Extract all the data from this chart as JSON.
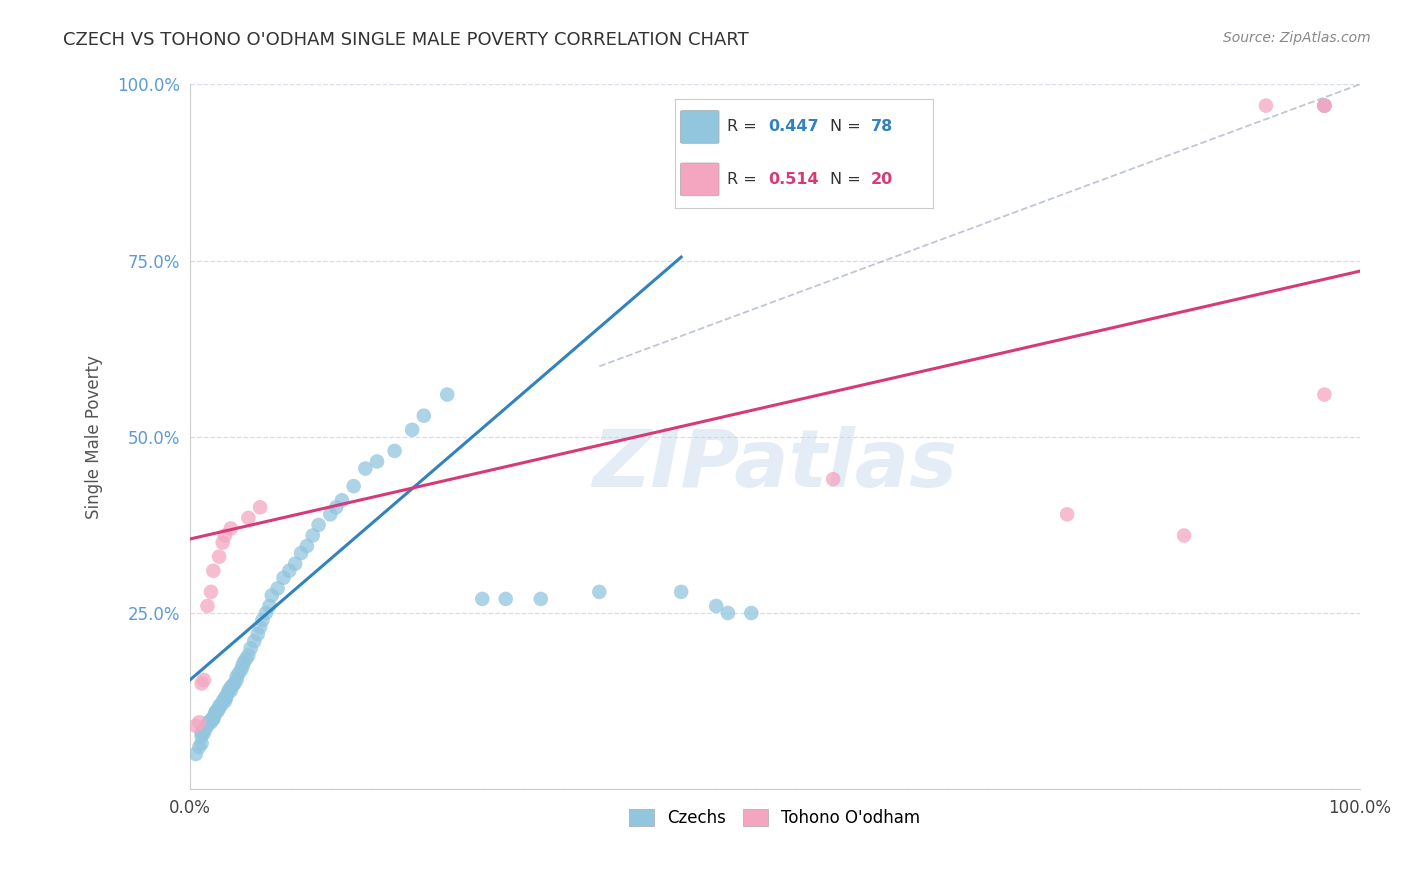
{
  "title": "CZECH VS TOHONO O'ODHAM SINGLE MALE POVERTY CORRELATION CHART",
  "source": "Source: ZipAtlas.com",
  "ylabel": "Single Male Poverty",
  "watermark": "ZIPatlas",
  "legend_label1": "Czechs",
  "legend_label2": "Tohono O'odham",
  "R_czech": 0.447,
  "N_czech": 78,
  "R_tohono": 0.514,
  "N_tohono": 20,
  "blue_color": "#92c5de",
  "blue_line_color": "#3182bd",
  "pink_color": "#f4a6c0",
  "pink_line_color": "#d63a78",
  "dashed_line_color": "#b0b8cc",
  "background_color": "#ffffff",
  "grid_color": "#d8dde8",
  "axis_label_color": "#5b9bd5",
  "xlim": [
    0,
    1
  ],
  "ylim": [
    0,
    1
  ],
  "blue_line_x": [
    0.0,
    0.42
  ],
  "blue_line_y": [
    0.155,
    0.755
  ],
  "pink_line_x": [
    0.0,
    1.0
  ],
  "pink_line_y": [
    0.355,
    0.735
  ],
  "dashed_line_x": [
    0.35,
    1.0
  ],
  "dashed_line_y": [
    0.6,
    1.0
  ],
  "czech_x": [
    0.005,
    0.008,
    0.01,
    0.01,
    0.01,
    0.012,
    0.012,
    0.013,
    0.014,
    0.015,
    0.016,
    0.016,
    0.018,
    0.019,
    0.02,
    0.02,
    0.021,
    0.022,
    0.022,
    0.023,
    0.024,
    0.025,
    0.025,
    0.027,
    0.028,
    0.03,
    0.03,
    0.031,
    0.032,
    0.033,
    0.035,
    0.035,
    0.037,
    0.038,
    0.04,
    0.04,
    0.042,
    0.044,
    0.045,
    0.046,
    0.048,
    0.05,
    0.052,
    0.055,
    0.058,
    0.06,
    0.062,
    0.065,
    0.068,
    0.07,
    0.075,
    0.08,
    0.085,
    0.09,
    0.095,
    0.1,
    0.105,
    0.11,
    0.12,
    0.125,
    0.13,
    0.14,
    0.15,
    0.16,
    0.175,
    0.19,
    0.2,
    0.22,
    0.25,
    0.27,
    0.3,
    0.35,
    0.42,
    0.45,
    0.46,
    0.48,
    0.97,
    0.97
  ],
  "czech_y": [
    0.05,
    0.06,
    0.065,
    0.075,
    0.08,
    0.08,
    0.085,
    0.085,
    0.09,
    0.09,
    0.095,
    0.095,
    0.095,
    0.1,
    0.1,
    0.1,
    0.105,
    0.108,
    0.11,
    0.11,
    0.112,
    0.115,
    0.118,
    0.12,
    0.125,
    0.125,
    0.13,
    0.13,
    0.135,
    0.14,
    0.14,
    0.145,
    0.148,
    0.15,
    0.155,
    0.16,
    0.165,
    0.17,
    0.175,
    0.18,
    0.185,
    0.19,
    0.2,
    0.21,
    0.22,
    0.23,
    0.24,
    0.25,
    0.26,
    0.275,
    0.285,
    0.3,
    0.31,
    0.32,
    0.335,
    0.345,
    0.36,
    0.375,
    0.39,
    0.4,
    0.41,
    0.43,
    0.455,
    0.465,
    0.48,
    0.51,
    0.53,
    0.56,
    0.27,
    0.27,
    0.27,
    0.28,
    0.28,
    0.26,
    0.25,
    0.25,
    0.97,
    0.97
  ],
  "tohono_x": [
    0.005,
    0.008,
    0.01,
    0.012,
    0.015,
    0.018,
    0.02,
    0.025,
    0.028,
    0.03,
    0.035,
    0.05,
    0.06,
    0.55,
    0.75,
    0.85,
    0.92,
    0.97,
    0.97,
    0.97
  ],
  "tohono_y": [
    0.09,
    0.095,
    0.15,
    0.155,
    0.26,
    0.28,
    0.31,
    0.33,
    0.35,
    0.36,
    0.37,
    0.385,
    0.4,
    0.44,
    0.39,
    0.36,
    0.97,
    0.56,
    0.97,
    0.97
  ]
}
